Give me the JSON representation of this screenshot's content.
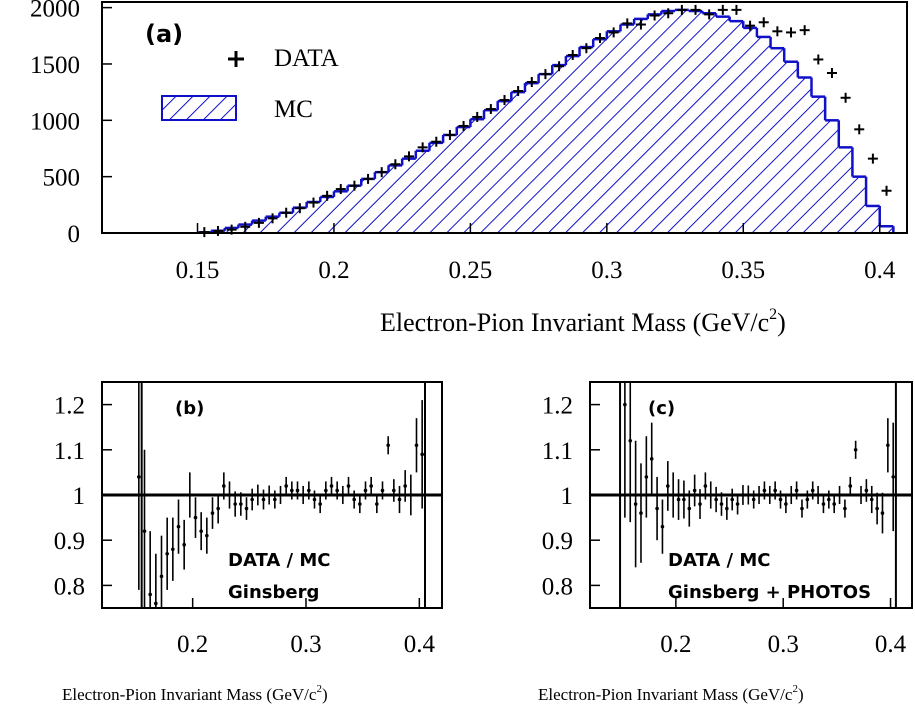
{
  "colors": {
    "mc": "#1010c8",
    "data": "#000000"
  },
  "chart_data": [
    {
      "type": "bar",
      "panel": "(a)",
      "xlabel": "Electron-Pion Invariant Mass (GeV/c",
      "xlabel_sup": "2",
      "xlabel_close": ")",
      "ylabel": "",
      "xlim": [
        0.115,
        0.41
      ],
      "ylim": [
        0,
        2050
      ],
      "xticks": [
        "0.15",
        "0.2",
        "0.25",
        "0.3",
        "0.35",
        "0.4"
      ],
      "yticks": [
        "0",
        "500",
        "1000",
        "1500",
        "2000"
      ],
      "bin_width": 0.005,
      "legend": {
        "data": "DATA",
        "mc": "MC",
        "placement": "top-left"
      },
      "mc": {
        "name": "MC",
        "x": [
          0.15,
          0.155,
          0.16,
          0.165,
          0.17,
          0.175,
          0.18,
          0.185,
          0.19,
          0.195,
          0.2,
          0.205,
          0.21,
          0.215,
          0.22,
          0.225,
          0.23,
          0.235,
          0.24,
          0.245,
          0.25,
          0.255,
          0.26,
          0.265,
          0.27,
          0.275,
          0.28,
          0.285,
          0.29,
          0.295,
          0.3,
          0.305,
          0.31,
          0.315,
          0.32,
          0.325,
          0.33,
          0.335,
          0.34,
          0.345,
          0.35,
          0.355,
          0.36,
          0.365,
          0.37,
          0.375,
          0.38,
          0.385,
          0.39,
          0.395,
          0.4
        ],
        "y": [
          5,
          20,
          45,
          75,
          110,
          145,
          180,
          225,
          275,
          320,
          370,
          420,
          480,
          540,
          600,
          660,
          730,
          800,
          870,
          940,
          1010,
          1090,
          1170,
          1250,
          1330,
          1410,
          1490,
          1570,
          1650,
          1720,
          1790,
          1850,
          1900,
          1940,
          1970,
          1980,
          1970,
          1950,
          1920,
          1880,
          1820,
          1740,
          1640,
          1520,
          1380,
          1210,
          1000,
          760,
          500,
          240,
          60
        ]
      },
      "data": {
        "name": "DATA",
        "x": [
          0.1525,
          0.1575,
          0.1625,
          0.1675,
          0.1725,
          0.1775,
          0.1825,
          0.1875,
          0.1925,
          0.1975,
          0.2025,
          0.2075,
          0.2125,
          0.2175,
          0.2225,
          0.2275,
          0.2325,
          0.2375,
          0.2425,
          0.2475,
          0.2525,
          0.2575,
          0.2625,
          0.2675,
          0.2725,
          0.2775,
          0.2825,
          0.2875,
          0.2925,
          0.2975,
          0.3025,
          0.3075,
          0.3125,
          0.3175,
          0.3225,
          0.3275,
          0.3325,
          0.3375,
          0.3425,
          0.3475,
          0.3525,
          0.3575,
          0.3625,
          0.3675,
          0.3725,
          0.3775,
          0.3825,
          0.3875,
          0.3925,
          0.3975,
          0.4025
        ],
        "y": [
          8,
          18,
          30,
          55,
          90,
          130,
          180,
          220,
          270,
          330,
          390,
          420,
          480,
          540,
          610,
          680,
          760,
          810,
          870,
          950,
          1030,
          1100,
          1180,
          1260,
          1340,
          1410,
          1480,
          1580,
          1640,
          1730,
          1780,
          1860,
          1850,
          1930,
          1950,
          1980,
          1980,
          1940,
          1980,
          1980,
          1840,
          1870,
          1790,
          1780,
          1800,
          1540,
          1420,
          1200,
          920,
          660,
          375
        ]
      }
    },
    {
      "type": "scatter",
      "panel": "(b)",
      "xlabel": "Electron-Pion Invariant Mass (GeV/c",
      "xlabel_sup": "2",
      "xlabel_close": ")",
      "xlim": [
        0.12,
        0.42
      ],
      "ylim": [
        0.75,
        1.25
      ],
      "xticks": [
        "0.2",
        "0.3",
        "0.4"
      ],
      "yticks": [
        "0.8",
        "0.9",
        "1",
        "1.1",
        "1.2"
      ],
      "reference_line": 1,
      "vlines": [
        0.155,
        0.405
      ],
      "annotation": [
        "DATA / MC",
        "Ginsberg"
      ],
      "x": [
        0.1525,
        0.1575,
        0.1625,
        0.1675,
        0.1725,
        0.1775,
        0.1825,
        0.1875,
        0.1925,
        0.1975,
        0.2025,
        0.2075,
        0.2125,
        0.2175,
        0.2225,
        0.2275,
        0.2325,
        0.2375,
        0.2425,
        0.2475,
        0.2525,
        0.2575,
        0.2625,
        0.2675,
        0.2725,
        0.2775,
        0.2825,
        0.2875,
        0.2925,
        0.2975,
        0.3025,
        0.3075,
        0.3125,
        0.3175,
        0.3225,
        0.3275,
        0.3325,
        0.3375,
        0.3425,
        0.3475,
        0.3525,
        0.3575,
        0.3625,
        0.3675,
        0.3725,
        0.3775,
        0.3825,
        0.3875,
        0.3925,
        0.3975,
        0.4025
      ],
      "y": [
        1.04,
        0.92,
        0.78,
        0.76,
        0.82,
        0.87,
        0.88,
        0.93,
        0.89,
        1.0,
        0.95,
        0.92,
        0.91,
        0.96,
        0.97,
        1.02,
        1.0,
        0.98,
        0.98,
        0.97,
        0.99,
        1.0,
        0.99,
        1.0,
        0.99,
        1.0,
        1.02,
        1.01,
        1.01,
        1.0,
        1.01,
        0.99,
        0.98,
        1.01,
        1.02,
        1.01,
        1.0,
        1.02,
        0.99,
        0.98,
        1.01,
        1.02,
        0.98,
        1.01,
        1.11,
        1.01,
        0.99,
        1.02,
        1.0,
        1.11,
        1.09
      ],
      "err": [
        0.25,
        0.18,
        0.14,
        0.11,
        0.09,
        0.08,
        0.07,
        0.06,
        0.055,
        0.05,
        0.045,
        0.042,
        0.04,
        0.035,
        0.033,
        0.03,
        0.03,
        0.028,
        0.026,
        0.025,
        0.024,
        0.023,
        0.022,
        0.021,
        0.02,
        0.02,
        0.02,
        0.02,
        0.02,
        0.02,
        0.02,
        0.02,
        0.02,
        0.02,
        0.02,
        0.02,
        0.02,
        0.02,
        0.02,
        0.02,
        0.02,
        0.02,
        0.02,
        0.02,
        0.02,
        0.025,
        0.03,
        0.035,
        0.045,
        0.06,
        0.12
      ]
    },
    {
      "type": "scatter",
      "panel": "(c)",
      "xlabel": "Electron-Pion Invariant Mass (GeV/c",
      "xlabel_sup": "2",
      "xlabel_close": ")",
      "xlim": [
        0.12,
        0.42
      ],
      "ylim": [
        0.75,
        1.25
      ],
      "xticks": [
        "0.2",
        "0.3",
        "0.4"
      ],
      "yticks": [
        "0.8",
        "0.9",
        "1",
        "1.1",
        "1.2"
      ],
      "reference_line": 1,
      "vlines": [
        0.148,
        0.405
      ],
      "annotation": [
        "DATA / MC",
        "Ginsberg + PHOTOS"
      ],
      "x": [
        0.1525,
        0.1575,
        0.1625,
        0.1675,
        0.1725,
        0.1775,
        0.1825,
        0.1875,
        0.1925,
        0.1975,
        0.2025,
        0.2075,
        0.2125,
        0.2175,
        0.2225,
        0.2275,
        0.2325,
        0.2375,
        0.2425,
        0.2475,
        0.2525,
        0.2575,
        0.2625,
        0.2675,
        0.2725,
        0.2775,
        0.2825,
        0.2875,
        0.2925,
        0.2975,
        0.3025,
        0.3075,
        0.3125,
        0.3175,
        0.3225,
        0.3275,
        0.3325,
        0.3375,
        0.3425,
        0.3475,
        0.3525,
        0.3575,
        0.3625,
        0.3675,
        0.3725,
        0.3775,
        0.3825,
        0.3875,
        0.3925,
        0.3975,
        0.4025
      ],
      "y": [
        1.2,
        1.12,
        0.98,
        0.96,
        1.04,
        1.08,
        0.97,
        0.93,
        1.02,
        1.0,
        0.99,
        0.99,
        0.97,
        1.01,
        0.98,
        1.02,
        1.0,
        0.99,
        0.98,
        0.97,
        0.99,
        0.98,
        1.0,
        1.0,
        0.99,
        1.0,
        1.01,
        1.0,
        1.01,
        0.99,
        0.98,
        1.0,
        1.01,
        0.97,
        0.99,
        1.01,
        1.0,
        0.98,
        0.99,
        0.98,
        1.0,
        0.97,
        1.02,
        1.1,
        1.0,
        1.01,
        0.99,
        0.97,
        0.96,
        1.11,
        1.04
      ],
      "err": [
        0.25,
        0.18,
        0.14,
        0.11,
        0.09,
        0.08,
        0.07,
        0.06,
        0.055,
        0.05,
        0.045,
        0.042,
        0.04,
        0.035,
        0.033,
        0.03,
        0.03,
        0.028,
        0.026,
        0.025,
        0.024,
        0.023,
        0.022,
        0.021,
        0.02,
        0.02,
        0.02,
        0.02,
        0.02,
        0.02,
        0.02,
        0.02,
        0.02,
        0.02,
        0.02,
        0.02,
        0.02,
        0.02,
        0.02,
        0.02,
        0.02,
        0.02,
        0.02,
        0.02,
        0.02,
        0.025,
        0.03,
        0.035,
        0.045,
        0.06,
        0.12
      ]
    }
  ]
}
